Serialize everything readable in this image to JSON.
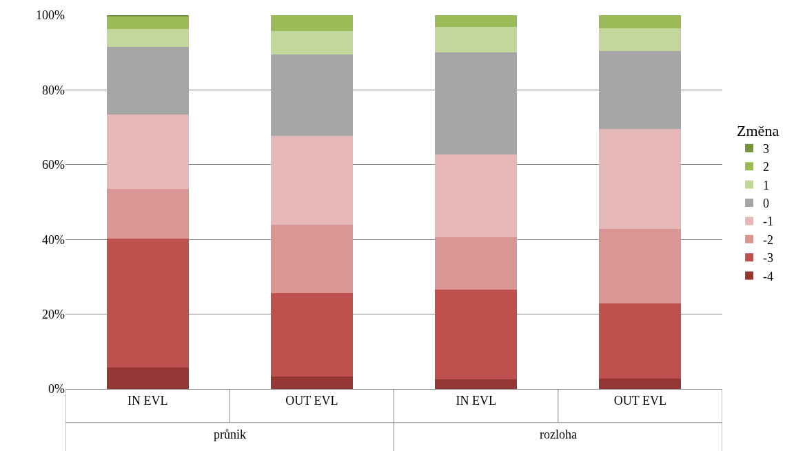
{
  "chart_data": {
    "type": "bar",
    "stacked": true,
    "categories": [
      "IN EVL",
      "OUT EVL",
      "IN EVL",
      "OUT EVL"
    ],
    "annotations": [
      "průnik",
      "rozloha"
    ],
    "legend_title": "Změna",
    "legend": "right",
    "grid": "y",
    "ylim": [
      0,
      100
    ],
    "yticks": [
      {
        "value": 0,
        "label": "0%"
      },
      {
        "value": 20,
        "label": "20%"
      },
      {
        "value": 40,
        "label": "40%"
      },
      {
        "value": 60,
        "label": "60%"
      },
      {
        "value": 80,
        "label": "80%"
      },
      {
        "value": 100,
        "label": "100%"
      }
    ],
    "series": [
      {
        "name": "-4",
        "color": "#953735",
        "values": [
          5.8,
          3.4,
          2.5,
          2.8
        ]
      },
      {
        "name": "-3",
        "color": "#c0504d",
        "values": [
          34.4,
          22.3,
          24.1,
          20.1
        ]
      },
      {
        "name": "-2",
        "color": "#d99694",
        "values": [
          13.3,
          18.2,
          13.9,
          19.9
        ]
      },
      {
        "name": "-1",
        "color": "#e6b9b8",
        "values": [
          19.9,
          23.9,
          22.3,
          26.7
        ]
      },
      {
        "name": "0",
        "color": "#a6a6a6",
        "values": [
          18.1,
          21.6,
          27.3,
          20.9
        ]
      },
      {
        "name": "1",
        "color": "#c3d69b",
        "values": [
          4.9,
          6.4,
          6.8,
          6.1
        ]
      },
      {
        "name": "2",
        "color": "#9bbb59",
        "values": [
          3.4,
          4.2,
          3.1,
          3.5
        ]
      },
      {
        "name": "3",
        "color": "#77933c",
        "values": [
          0.2,
          0,
          0,
          0
        ]
      }
    ]
  }
}
